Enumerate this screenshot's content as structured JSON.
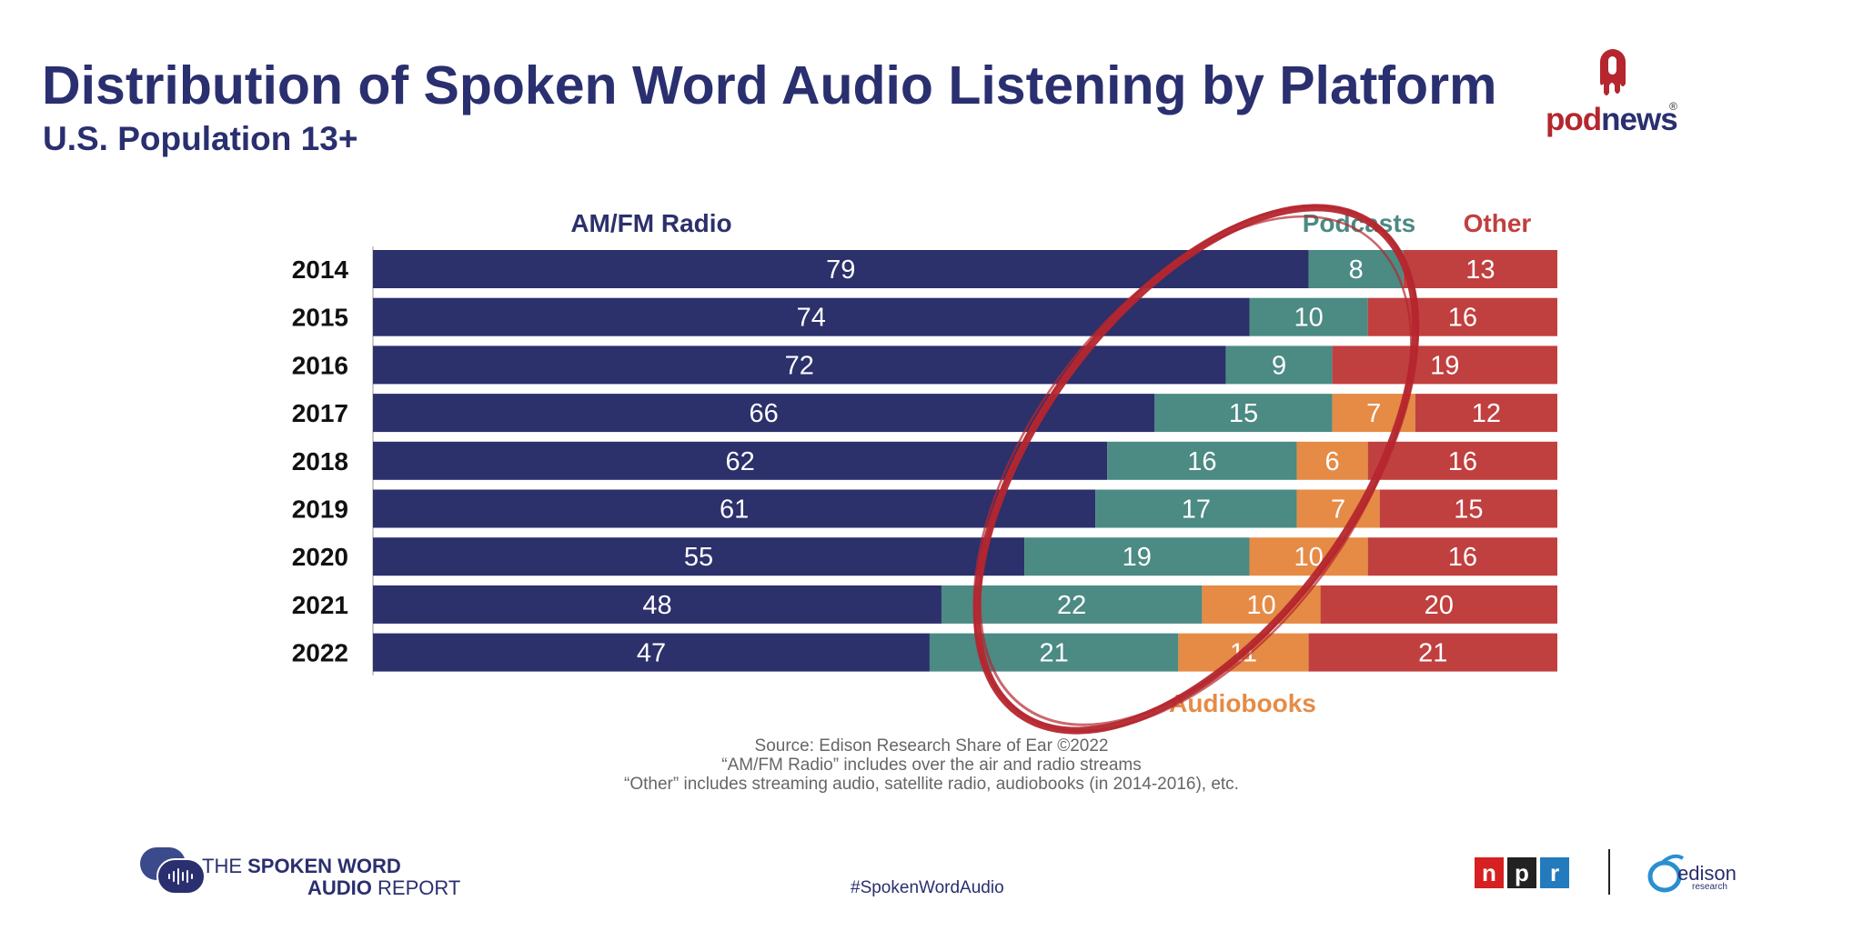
{
  "title": "Distribution of Spoken Word Audio Listening by Platform",
  "subtitle": "U.S. Population 13+",
  "logos": {
    "podnews_prefix": "pod",
    "podnews_suffix": "news",
    "podnews_reg": "®",
    "report_line1_prefix": "THE ",
    "report_line1_bold": "SPOKEN WORD",
    "report_line2_bold": "AUDIO",
    "report_line2_rest": " REPORT",
    "npr_letters": [
      "n",
      "p",
      "r"
    ],
    "edison_name": "edison",
    "edison_sub": "research"
  },
  "hashtag": "#SpokenWordAudio",
  "source_lines": [
    "Source: Edison Research Share of Ear ©2022",
    "“AM/FM Radio” includes over the air and radio streams",
    "“Other” includes streaming audio, satellite radio, audiobooks (in 2014-2016), etc."
  ],
  "colors": {
    "amfm": "#2c306b",
    "podcasts": "#4c8a84",
    "audiobooks": "#e58b46",
    "other": "#c0403f",
    "title": "#2a2f6f",
    "podnews_red": "#b5262e",
    "npr_red": "#d62021",
    "npr_black": "#222222",
    "npr_blue": "#237bbd",
    "edison_blue": "#2a8fd0",
    "circle": "#b5262e"
  },
  "chart_data": {
    "type": "bar",
    "orientation": "horizontal",
    "stacked": true,
    "categories": [
      "2014",
      "2015",
      "2016",
      "2017",
      "2018",
      "2019",
      "2020",
      "2021",
      "2022"
    ],
    "series": [
      {
        "name": "AM/FM Radio",
        "values": [
          79,
          74,
          72,
          66,
          62,
          61,
          55,
          48,
          47
        ]
      },
      {
        "name": "Podcasts",
        "values": [
          8,
          10,
          9,
          15,
          16,
          17,
          19,
          22,
          21
        ]
      },
      {
        "name": "Audiobooks",
        "values": [
          null,
          null,
          null,
          7,
          6,
          7,
          10,
          10,
          11
        ]
      },
      {
        "name": "Other",
        "values": [
          13,
          16,
          19,
          12,
          16,
          15,
          16,
          20,
          21
        ]
      }
    ],
    "xlim": [
      0,
      100
    ],
    "annotation": "hand-drawn red ellipse circling the Podcasts and Audiobooks segments"
  }
}
